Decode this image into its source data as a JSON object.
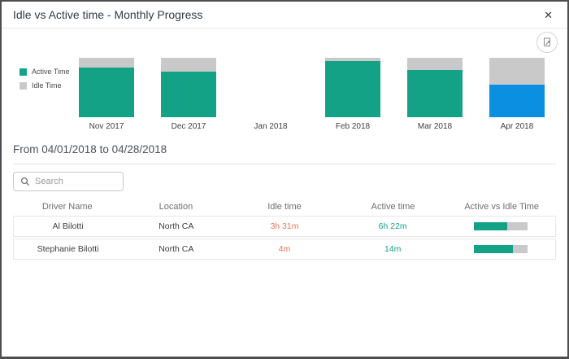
{
  "dialog": {
    "title": "Idle vs Active time - Monthly Progress",
    "close_label": "✕"
  },
  "colors": {
    "active_teal": "#14a286",
    "idle_gray": "#c9c9c9",
    "selected_blue": "#0b8fe0",
    "idle_text_orange": "#e8744f",
    "active_text_teal": "#14a286"
  },
  "chart_data": {
    "type": "bar",
    "stacked": true,
    "unit": "percent_of_month_total",
    "categories": [
      "Nov 2017",
      "Dec 2017",
      "Jan 2018",
      "Feb 2018",
      "Mar 2018",
      "Apr 2018"
    ],
    "series": [
      {
        "name": "Active Time",
        "color": "#14a286",
        "values": [
          84,
          77,
          null,
          95,
          80,
          55
        ]
      },
      {
        "name": "Idle Time",
        "color": "#c9c9c9",
        "values": [
          16,
          23,
          null,
          5,
          20,
          45
        ]
      }
    ],
    "selected_category": "Apr 2018",
    "selected_color": "#0b8fe0",
    "legend_position": "left",
    "ylim": [
      0,
      100
    ],
    "grid": false
  },
  "filter": {
    "date_range_label": "From 04/01/2018 to 04/28/2018"
  },
  "search": {
    "placeholder": "Search"
  },
  "table": {
    "columns": [
      "Driver Name",
      "Location",
      "Idle time",
      "Active time",
      "Active vs Idle Time"
    ],
    "rows": [
      {
        "driver": "Al Bilotti",
        "location": "North CA",
        "idle": "3h 31m",
        "active": "6h 22m",
        "active_pct": 62
      },
      {
        "driver": "Stephanie Bilotti",
        "location": "North CA",
        "idle": "4m",
        "active": "14m",
        "active_pct": 72
      }
    ]
  }
}
